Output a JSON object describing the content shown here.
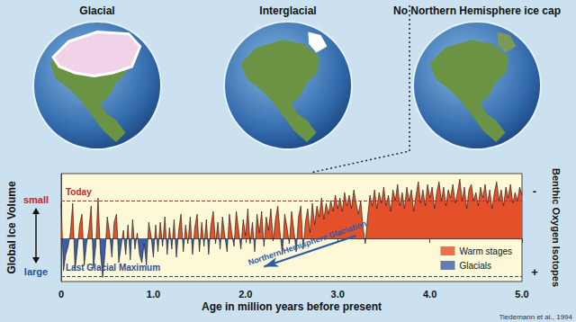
{
  "panels": [
    "Glacial",
    "Interglacial",
    "No Northern Hemisphere ice cap"
  ],
  "credit": "Tiedemann et al., 1994",
  "chart_data": {
    "type": "line",
    "xlabel": "Age in million years before present",
    "ylabel": "Global Ice Volume",
    "ylabel_top": "small",
    "ylabel_bottom": "large",
    "y2label": "Benthic Oxygen Isotopes",
    "y2label_top": "-",
    "y2label_bottom": "+",
    "xlim": [
      0,
      5
    ],
    "xticks": [
      0,
      {
        "value": 1,
        "label": "1.0"
      },
      {
        "value": 2,
        "label": "2.0"
      },
      {
        "value": 3,
        "label": "3.0"
      },
      {
        "value": 4,
        "label": "4.0"
      },
      {
        "value": 5,
        "label": "5.0"
      }
    ],
    "ylim": [
      -1.6,
      2.4
    ],
    "tick_labels": "x",
    "grid": false,
    "legend": "lower right",
    "x": [
      0,
      0.025,
      0.05,
      0.075,
      0.1,
      0.125,
      0.15,
      0.175,
      0.2,
      0.225,
      0.25,
      0.275,
      0.3,
      0.325,
      0.35,
      0.375,
      0.4,
      0.425,
      0.45,
      0.475,
      0.5,
      0.525,
      0.55,
      0.575,
      0.6,
      0.625,
      0.65,
      0.675,
      0.7,
      0.725,
      0.75,
      0.775,
      0.8,
      0.825,
      0.85,
      0.875,
      0.9,
      0.925,
      0.95,
      0.975,
      1,
      1.025,
      1.05,
      1.075,
      1.1,
      1.125,
      1.15,
      1.175,
      1.2,
      1.225,
      1.25,
      1.275,
      1.3,
      1.325,
      1.35,
      1.375,
      1.4,
      1.425,
      1.45,
      1.475,
      1.5,
      1.525,
      1.55,
      1.575,
      1.6,
      1.625,
      1.65,
      1.675,
      1.7,
      1.725,
      1.75,
      1.775,
      1.8,
      1.825,
      1.85,
      1.875,
      1.9,
      1.925,
      1.95,
      1.975,
      2,
      2.025,
      2.05,
      2.075,
      2.1,
      2.125,
      2.15,
      2.175,
      2.2,
      2.225,
      2.25,
      2.275,
      2.3,
      2.325,
      2.35,
      2.375,
      2.4,
      2.425,
      2.45,
      2.475,
      2.5,
      2.525,
      2.55,
      2.575,
      2.6,
      2.625,
      2.65,
      2.675,
      2.7,
      2.725,
      2.75,
      2.775,
      2.8,
      2.825,
      2.85,
      2.875,
      2.9,
      2.925,
      2.95,
      2.975,
      3,
      3.025,
      3.05,
      3.075,
      3.1,
      3.125,
      3.15,
      3.175,
      3.2,
      3.225,
      3.25,
      3.275,
      3.3,
      3.325,
      3.35,
      3.375,
      3.4,
      3.425,
      3.45,
      3.475,
      3.5,
      3.525,
      3.55,
      3.575,
      3.6,
      3.625,
      3.65,
      3.675,
      3.7,
      3.725,
      3.75,
      3.775,
      3.8,
      3.825,
      3.85,
      3.875,
      3.9,
      3.925,
      3.95,
      3.975,
      4,
      4.025,
      4.05,
      4.075,
      4.1,
      4.125,
      4.15,
      4.175,
      4.2,
      4.225,
      4.25,
      4.275,
      4.3,
      4.325,
      4.35,
      4.375,
      4.4,
      4.425,
      4.45,
      4.475,
      4.5,
      4.525,
      4.55,
      4.575,
      4.6,
      4.625,
      4.65,
      4.675,
      4.7,
      4.725,
      4.75,
      4.775,
      4.8,
      4.825,
      4.85,
      4.875,
      4.9,
      4.925,
      4.95,
      4.975,
      5
    ],
    "series": [
      {
        "color": "#111111",
        "baseline": 0,
        "fills": [
          {
            "name": "Warm stages",
            "color": "#e4502a",
            "side": "above"
          },
          {
            "name": "Glacials",
            "color": "#3d5fa8",
            "side": "below"
          }
        ],
        "values": [
          1.3,
          -1.2,
          -0.6,
          -0.3,
          0.2,
          1.3,
          -1.2,
          -0.4,
          0.5,
          0.9,
          -1.0,
          -0.2,
          0.3,
          1.2,
          -1.1,
          -0.3,
          1.5,
          -0.5,
          -1.45,
          -0.6,
          0.8,
          0.2,
          -0.7,
          0.6,
          0.9,
          -0.9,
          -0.3,
          0.3,
          -0.6,
          0.5,
          -0.8,
          0.7,
          -0.4,
          0.2,
          -0.6,
          -0.9,
          -0.2,
          -1.0,
          0.6,
          0.1,
          -0.7,
          0.5,
          -0.5,
          0.6,
          -0.3,
          0.8,
          -0.6,
          0.4,
          -0.4,
          0.7,
          -0.7,
          0.3,
          0.9,
          -0.5,
          0.5,
          -0.2,
          0.8,
          -0.6,
          0.4,
          0.9,
          -0.5,
          0.6,
          -0.3,
          0.7,
          -0.6,
          0.5,
          1.0,
          -0.2,
          0.6,
          -0.4,
          0.8,
          0.1,
          -0.5,
          0.9,
          0.2,
          -0.3,
          1.0,
          0.3,
          -0.4,
          0.7,
          0.1,
          1.1,
          -0.2,
          0.6,
          -0.5,
          0.9,
          0.2,
          1.0,
          -0.3,
          0.8,
          0.3,
          1.1,
          -0.1,
          0.7,
          1.2,
          0.2,
          -0.6,
          0.9,
          0.4,
          -0.2,
          1.0,
          0.3,
          -0.5,
          0.8,
          1.2,
          -0.4,
          0.6,
          1.1,
          0.2,
          1.3,
          0.5,
          1.2,
          0.8,
          1.5,
          0.7,
          1.3,
          0.9,
          1.4,
          1.0,
          1.6,
          1.1,
          1.5,
          1.0,
          1.7,
          1.2,
          1.6,
          1.1,
          1.8,
          1.3,
          0.9,
          1.4,
          0.4,
          -0.2,
          0.8,
          1.6,
          1.2,
          1.8,
          1.1,
          1.7,
          1.3,
          1.9,
          1.2,
          1.6,
          1.0,
          1.8,
          1.4,
          2.0,
          1.2,
          1.7,
          1.1,
          1.9,
          1.4,
          1.8,
          1.0,
          1.6,
          2.1,
          1.3,
          1.8,
          1.2,
          2.0,
          1.5,
          1.9,
          1.1,
          1.7,
          2.1,
          1.4,
          1.9,
          1.2,
          1.8,
          1.5,
          2.0,
          1.3,
          1.7,
          2.2,
          1.4,
          1.9,
          1.1,
          1.8,
          2.0,
          1.4,
          1.7,
          1.2,
          1.9,
          1.5,
          2.0,
          1.3,
          1.8,
          1.1,
          1.7,
          2.1,
          1.4,
          1.8,
          1.2,
          1.9,
          1.5,
          2.0,
          1.3,
          1.7,
          1.4,
          1.9,
          1.6
        ]
      }
    ],
    "reference_lines": [
      {
        "value": 1.4,
        "label": "Today",
        "color": "#c0272d"
      },
      {
        "value": -1.4,
        "label": "Last Glacial Maximum",
        "color": "#2b4f9e"
      }
    ],
    "annotations": [
      {
        "text": "Northern Hemisphere Glaciation",
        "from": [
          3.2,
          0.1
        ],
        "to": [
          2.2,
          -1.05
        ],
        "color": "#2b5aa8"
      }
    ]
  }
}
